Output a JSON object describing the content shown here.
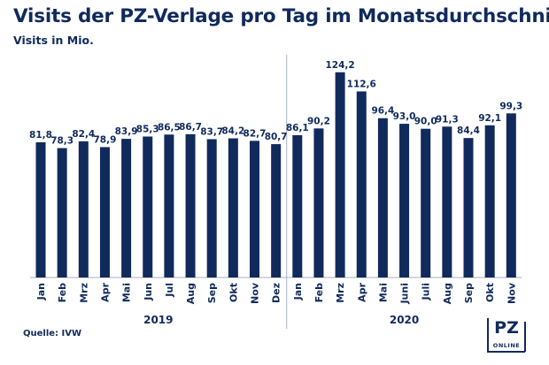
{
  "chart_data": {
    "type": "bar",
    "title": "Visits der PZ-Verlage pro Tag im Monatsdurchschnitt",
    "subtitle": "Visits in Mio.",
    "xlabel": "",
    "ylabel": "",
    "ylim": [
      0,
      135
    ],
    "grid": false,
    "legend": "none",
    "bar_color": "#102a5c",
    "groups": [
      {
        "year": "2019",
        "categories": [
          "Jan",
          "Feb",
          "Mrz",
          "Apr",
          "Mai",
          "Jun",
          "Jul",
          "Aug",
          "Sep",
          "Okt",
          "Nov",
          "Dez"
        ],
        "values": [
          81.8,
          78.3,
          82.4,
          78.9,
          83.9,
          85.3,
          86.5,
          86.7,
          83.7,
          84.2,
          82.7,
          80.7
        ],
        "labels": [
          "81,8",
          "78,3",
          "82,4",
          "78,9",
          "83,9",
          "85,3",
          "86,5",
          "86,7",
          "83,7",
          "84,2",
          "82,7",
          "80,7"
        ]
      },
      {
        "year": "2020",
        "categories": [
          "Jan",
          "Feb",
          "Mrz",
          "Apr",
          "Mai",
          "Juni",
          "Juli",
          "Aug",
          "Sep",
          "Okt",
          "Nov"
        ],
        "values": [
          86.1,
          90.2,
          124.2,
          112.6,
          96.4,
          93.0,
          90.0,
          91.3,
          84.4,
          92.1,
          99.3
        ],
        "labels": [
          "86,1",
          "90,2",
          "124,2",
          "112,6",
          "96,4",
          "93,0",
          "90,0",
          "91,3",
          "84,4",
          "92,1",
          "99,3"
        ]
      }
    ]
  },
  "source": "Quelle: IVW",
  "logo": {
    "icon": "pz-online-logo-icon",
    "text": "PZ ONLINE"
  },
  "colors": {
    "text": "#102a5c",
    "bar": "#102a5c",
    "axis": "#a7b0c2"
  }
}
